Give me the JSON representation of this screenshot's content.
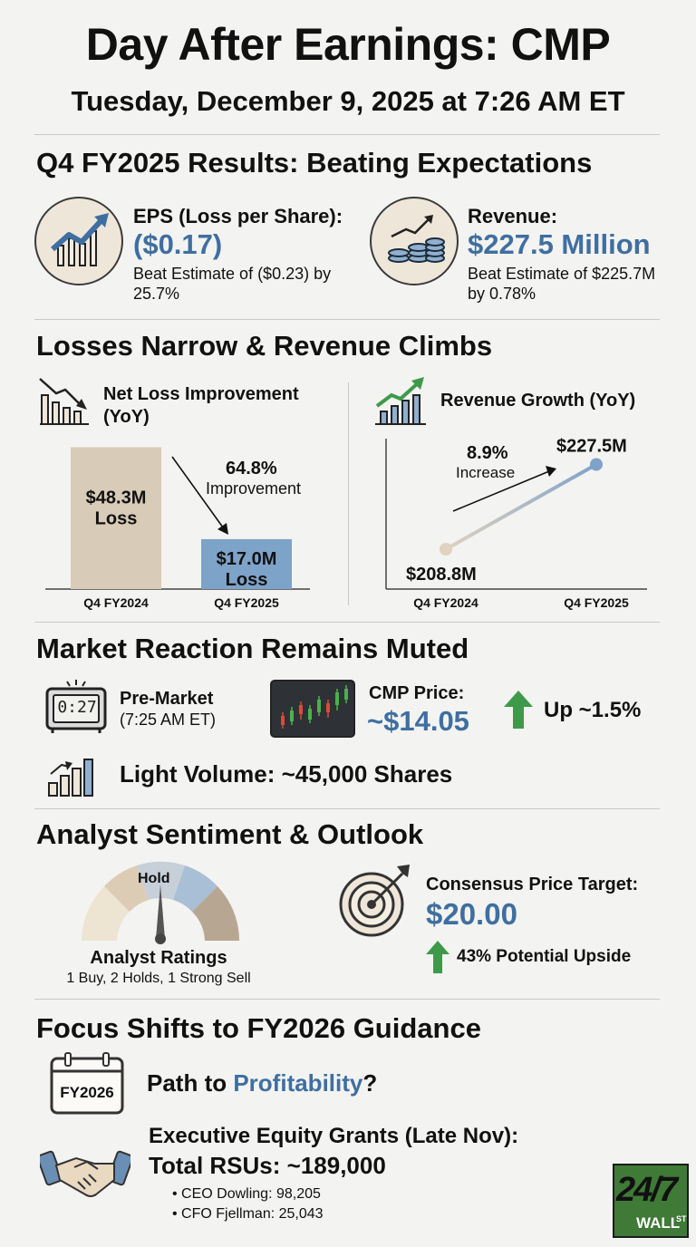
{
  "header": {
    "title": "Day After Earnings: CMP",
    "subtitle": "Tuesday, December 9, 2025 at 7:26 AM ET"
  },
  "results": {
    "heading": "Q4 FY2025 Results: Beating Expectations",
    "eps": {
      "label": "EPS (Loss per Share):",
      "value": "($0.17)",
      "note_line1": "Beat Estimate of ($0.23) by",
      "note_line2": "25.7%"
    },
    "revenue": {
      "label": "Revenue:",
      "value": "$227.5 Million",
      "note_line1": "Beat Estimate of $225.7M",
      "note_line2": "by 0.78%"
    }
  },
  "trends": {
    "heading": "Losses Narrow & Revenue Climbs",
    "net_loss_title_line1": "Net Loss Improvement",
    "net_loss_title_line2": "(YoY)",
    "net_loss_change_value": "64.8%",
    "net_loss_change_label": "Improvement",
    "revenue_title": "Revenue Growth (YoY)",
    "revenue_change_value": "8.9%",
    "revenue_change_label": "Increase"
  },
  "chart_data": [
    {
      "type": "bar",
      "categories": [
        "Q4 FY2024",
        "Q4 FY2025"
      ],
      "values": [
        48.3,
        17.0
      ],
      "labels": [
        [
          "$48.3M",
          "Loss"
        ],
        [
          "$17.0M",
          "Loss"
        ]
      ],
      "colors": [
        "#d8cbb8",
        "#7ea3c9"
      ],
      "ylim": [
        0,
        50
      ]
    },
    {
      "type": "line",
      "x": [
        "Q4 FY2024",
        "Q4 FY2025"
      ],
      "values": [
        208.8,
        227.5
      ],
      "labels": [
        "$208.8M",
        "$227.5M"
      ],
      "colors": [
        "#e0d2bf",
        "#7ea3c9"
      ],
      "ylim": [
        200,
        232
      ]
    }
  ],
  "market": {
    "heading": "Market Reaction Remains Muted",
    "clock_display": "0:27",
    "premarket_label": "Pre-Market",
    "premarket_time": "(7:25 AM ET)",
    "price_label": "CMP Price:",
    "price_value": "~$14.05",
    "change": "Up ~1.5%",
    "volume": "Light Volume: ~45,000 Shares"
  },
  "analyst": {
    "heading": "Analyst Sentiment & Outlook",
    "gauge_label": "Hold",
    "ratings_title": "Analyst Ratings",
    "ratings_detail": "1 Buy, 2 Holds, 1 Strong Sell",
    "target_label": "Consensus Price Target:",
    "target_value": "$20.00",
    "upside": "43% Potential Upside"
  },
  "guidance": {
    "heading": "Focus Shifts to FY2026 Guidance",
    "calendar_label": "FY2026",
    "path_prefix": "Path to",
    "path_highlight": "Profitability",
    "path_suffix": "?",
    "equity_title": "Executive Equity Grants (Late Nov):",
    "rsu_total": "Total RSUs: ~189,000",
    "grants": [
      "CEO Dowling: 98,205",
      "CFO Fjellman: 25,043"
    ]
  },
  "logo": {
    "main": "24/7",
    "sub": "WALL",
    "sup": "ST"
  },
  "colors": {
    "accent_blue": "#3f6fa0",
    "bar_tan": "#d8cbb8",
    "bar_blue": "#7ea3c9",
    "up_green": "#3e9a4a"
  }
}
